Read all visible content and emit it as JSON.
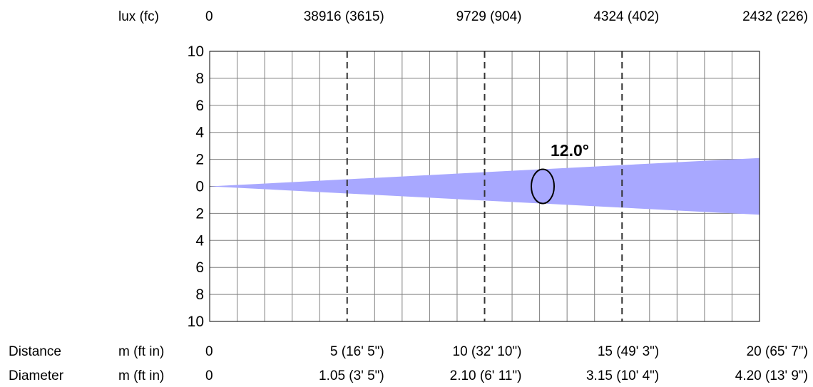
{
  "chart_data": {
    "type": "area",
    "title": "",
    "beam_angle_label": "12.0°",
    "beam_angle_deg": 12.0,
    "fill_color": "#a8a8ff",
    "grid": true,
    "xlim": [
      0,
      20
    ],
    "ylim": [
      -10,
      10
    ],
    "y_tick_labels": [
      "10",
      "8",
      "6",
      "4",
      "2",
      "0",
      "2",
      "4",
      "6",
      "8",
      "10"
    ],
    "y_tick_values": [
      10,
      8,
      6,
      4,
      2,
      0,
      -2,
      -4,
      -6,
      -8,
      -10
    ],
    "x_minor_gridlines": [
      1,
      2,
      3,
      4,
      5,
      6,
      7,
      8,
      9,
      10,
      11,
      12,
      13,
      14,
      15,
      16,
      17,
      18,
      19
    ],
    "x_dashed_lines": [
      5,
      10,
      15
    ],
    "beam_half_width_at_end": 2.1,
    "lux_row": {
      "label": "lux (fc)",
      "entries": [
        {
          "x": 0,
          "text": "0"
        },
        {
          "x": 5,
          "text": "38916 (3615)"
        },
        {
          "x": 10,
          "text": "9729 (904)"
        },
        {
          "x": 15,
          "text": "4324 (402)"
        },
        {
          "x": 20,
          "text": "2432 (226)"
        }
      ]
    },
    "distance_row": {
      "label": "Distance",
      "unit": "m (ft in)",
      "entries": [
        {
          "x": 0,
          "text": "0"
        },
        {
          "x": 5,
          "text": "5 (16' 5\")"
        },
        {
          "x": 10,
          "text": "10 (32' 10\")"
        },
        {
          "x": 15,
          "text": "15 (49' 3\")"
        },
        {
          "x": 20,
          "text": "20 (65' 7\")"
        }
      ]
    },
    "diameter_row": {
      "label": "Diameter",
      "unit": "m (ft in)",
      "entries": [
        {
          "x": 0,
          "text": "0"
        },
        {
          "x": 5,
          "text": "1.05 (3' 5\")"
        },
        {
          "x": 10,
          "text": "2.10 (6' 11\")"
        },
        {
          "x": 15,
          "text": "3.15 (10' 4\")"
        },
        {
          "x": 20,
          "text": "4.20 (13' 9\")"
        }
      ]
    }
  }
}
